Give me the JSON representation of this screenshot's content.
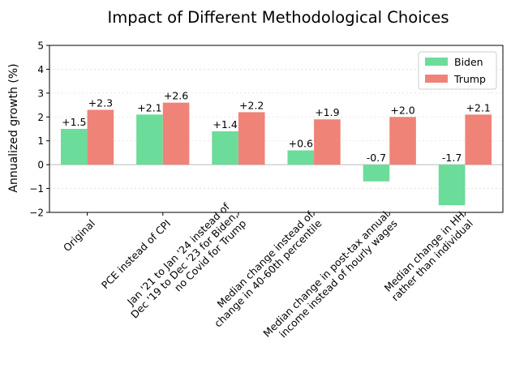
{
  "chart_data": {
    "type": "bar",
    "title": "Impact of Different Methodological Choices",
    "xlabel": "",
    "ylabel": "Annualized growth (%)",
    "ylim": [
      -2,
      5
    ],
    "yticks": [
      -2,
      -1,
      0,
      1,
      2,
      3,
      4,
      5
    ],
    "grid": true,
    "legend_position": "top-right",
    "categories": [
      [
        "Original"
      ],
      [
        "PCE instead of CPI"
      ],
      [
        "Jan '21 to Jan '24 instead of",
        "Dec '19 to Dec '23 for Biden,",
        "no Covid for Trump"
      ],
      [
        "Median change instead of",
        "change in 40-60th percentile"
      ],
      [
        "Median change in post-tax annual",
        "income instead of hourly wages"
      ],
      [
        "Median change in HH",
        "rather than individual"
      ]
    ],
    "series": [
      {
        "name": "Biden",
        "color": "#6cdc9b",
        "values": [
          1.5,
          2.1,
          1.4,
          0.6,
          -0.7,
          -1.7
        ],
        "labels": [
          "+1.5",
          "+2.1",
          "+1.4",
          "+0.6",
          "-0.7",
          "-1.7"
        ]
      },
      {
        "name": "Trump",
        "color": "#ef8377",
        "values": [
          2.3,
          2.6,
          2.2,
          1.9,
          2.0,
          2.1
        ],
        "labels": [
          "+2.3",
          "+2.6",
          "+2.2",
          "+1.9",
          "+2.0",
          "+2.1"
        ]
      }
    ]
  }
}
